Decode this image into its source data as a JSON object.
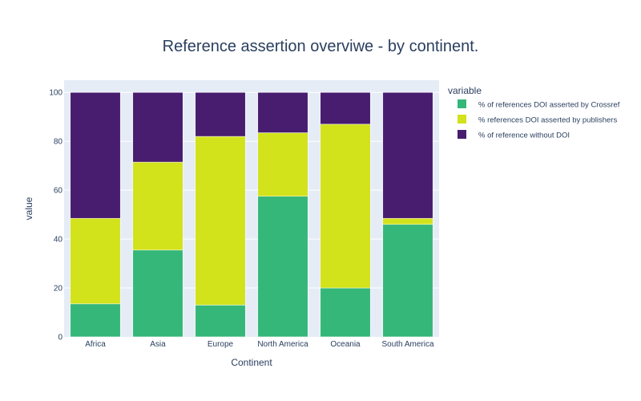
{
  "chart_data": {
    "type": "bar",
    "stacked": true,
    "title": "Reference assertion overviwe - by continent.",
    "xlabel": "Continent",
    "ylabel": "value",
    "ylim": [
      0,
      105
    ],
    "yticks": [
      "0",
      "20",
      "40",
      "60",
      "80",
      "100"
    ],
    "categories": [
      "Africa",
      "Asia",
      "Europe",
      "North America",
      "Oceania",
      "South America"
    ],
    "legend_title": "variable",
    "legend_position": "top-right",
    "grid": true,
    "series": [
      {
        "name": "% of references DOI asserted by Crossref",
        "color": "#35b779",
        "values": [
          13.5,
          35.5,
          13,
          57.5,
          20,
          46
        ]
      },
      {
        "name": "% references DOI asserted by publishers",
        "color": "#d2e21b",
        "values": [
          35,
          36,
          69,
          26,
          67,
          2.5
        ]
      },
      {
        "name": "% of reference without DOI",
        "color": "#481c6e",
        "values": [
          51.5,
          28.5,
          18,
          16.5,
          13,
          51.5
        ]
      }
    ],
    "plot_bg": "#e5ecf6"
  }
}
